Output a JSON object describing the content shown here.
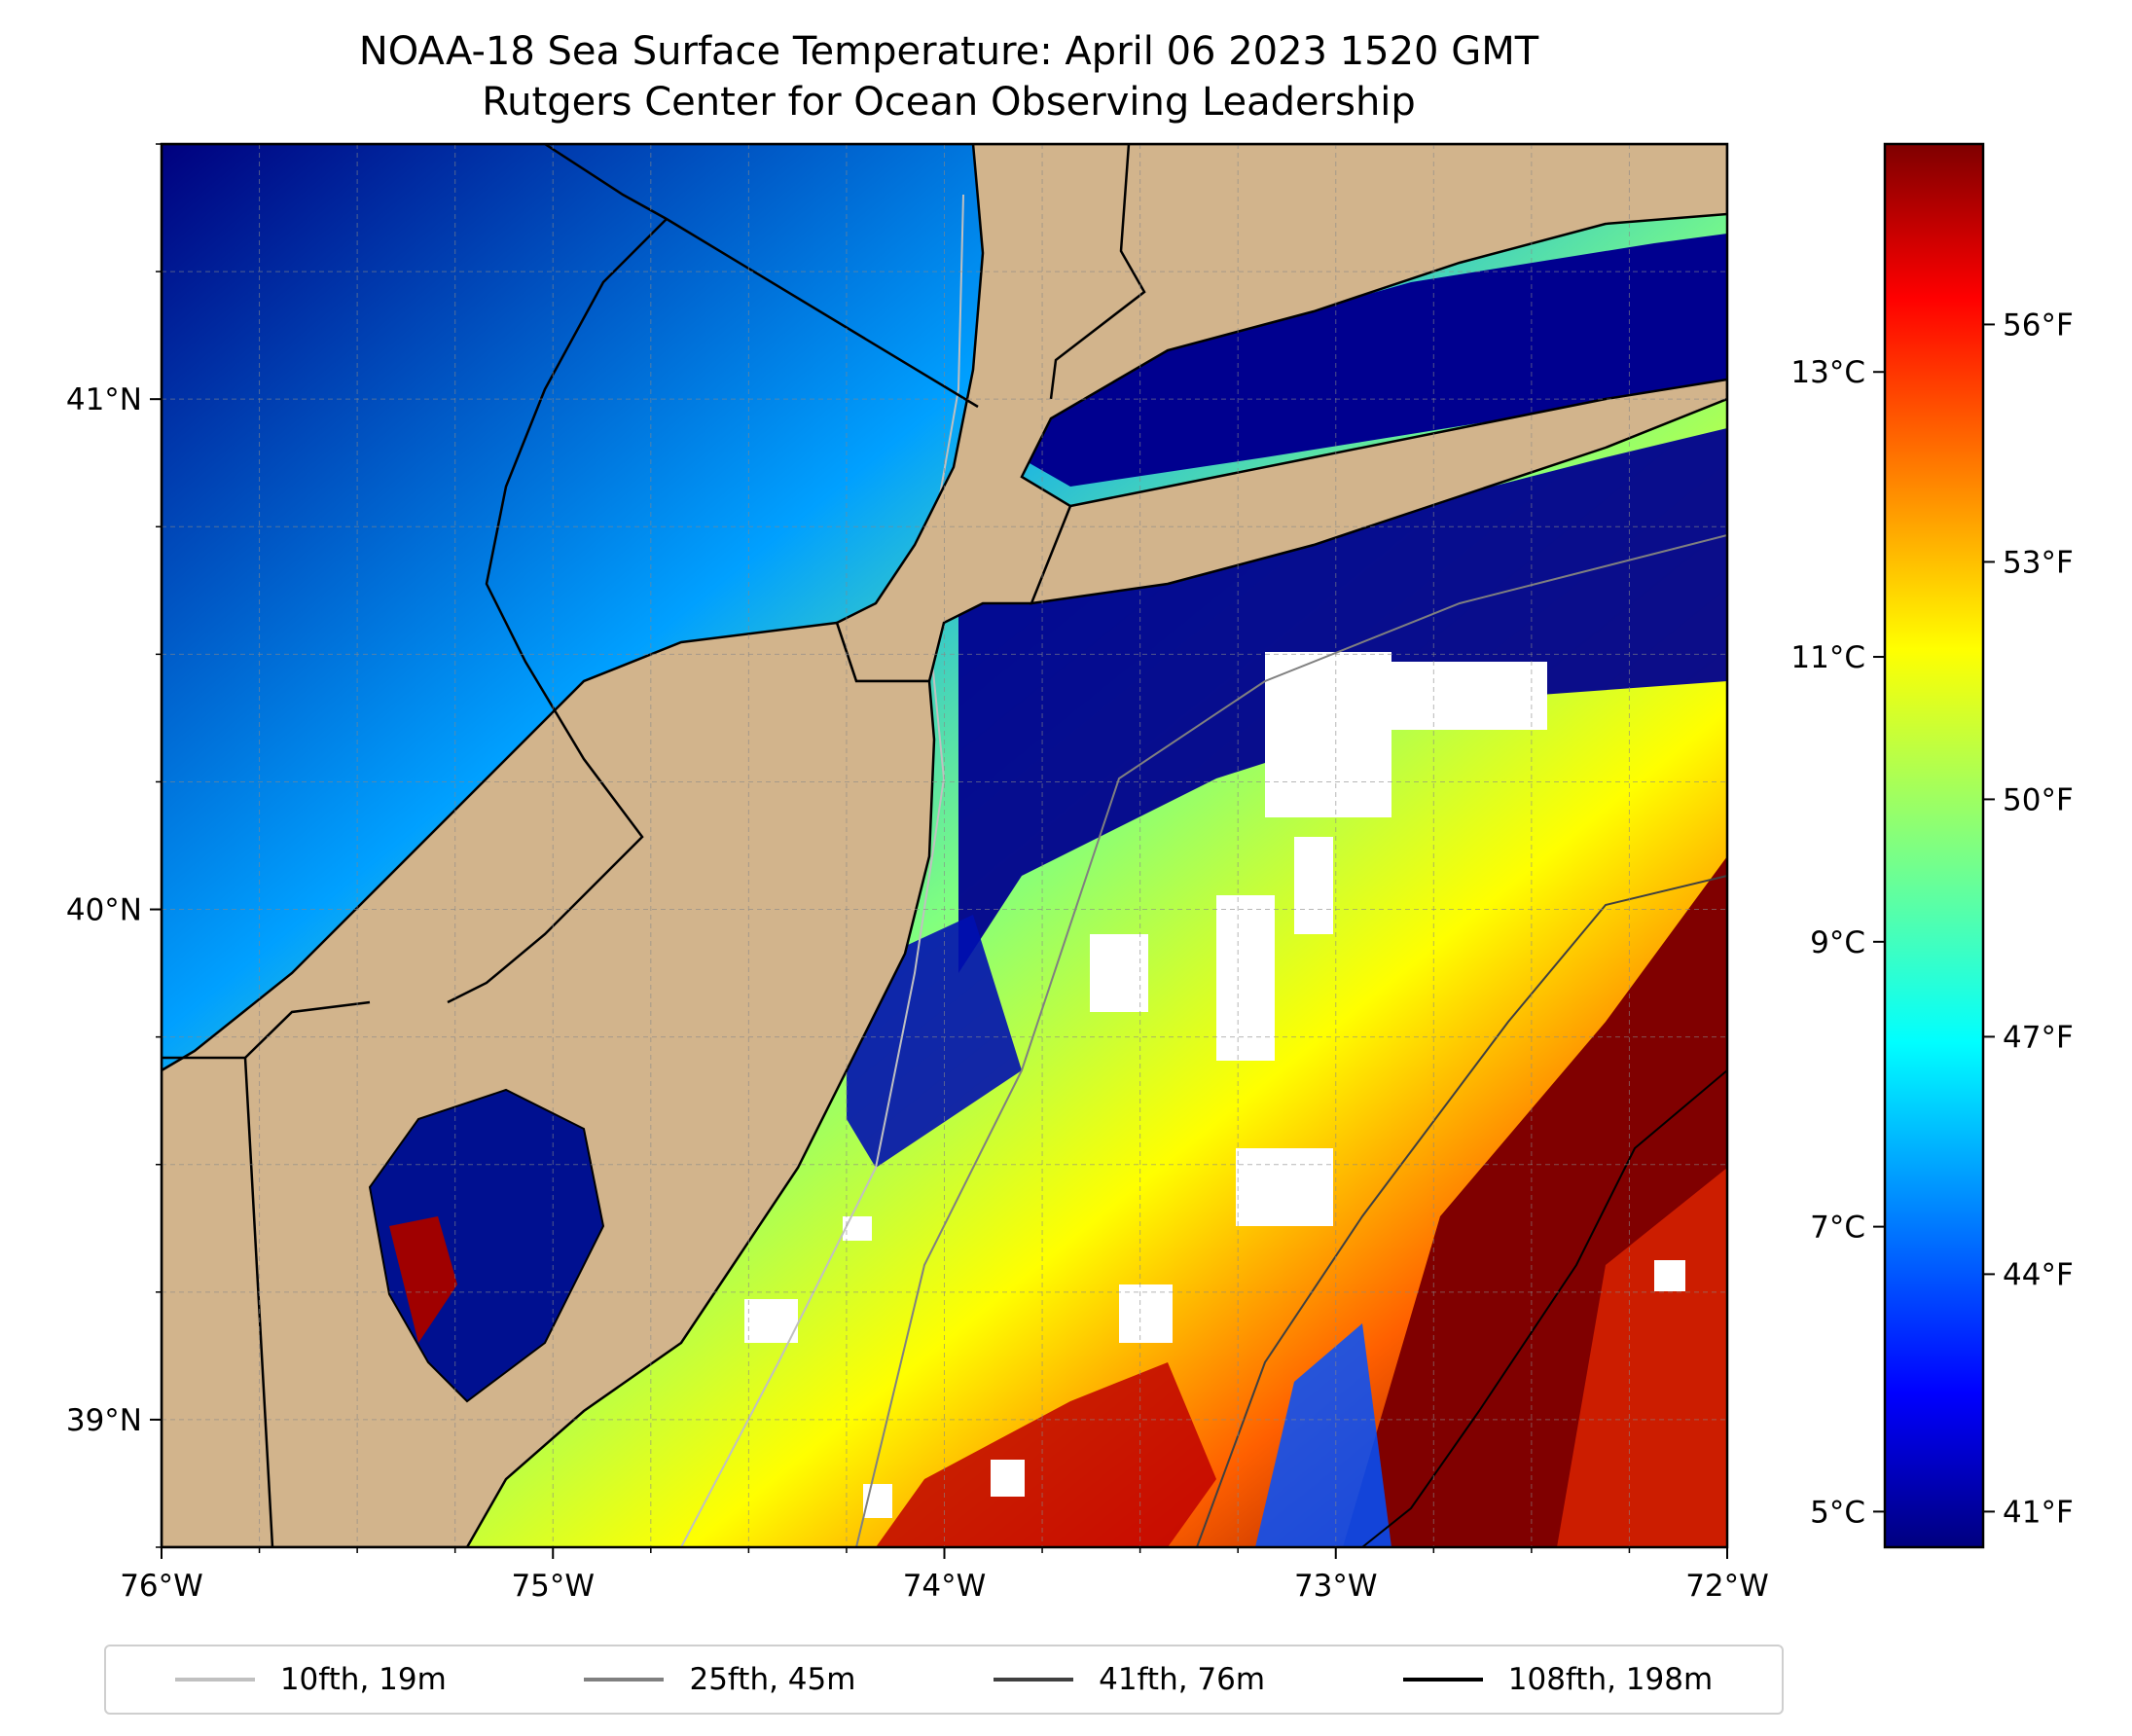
{
  "title": "NOAA-18 Sea Surface Temperature: April 06 2023 1520 GMT",
  "subtitle": "Rutgers Center for Ocean Observing Leadership",
  "map": {
    "lon_range": [
      -76,
      -72
    ],
    "lat_range": [
      38.75,
      41.5
    ],
    "lon_ticks": [
      -76,
      -75,
      -74,
      -73,
      -72
    ],
    "lon_tick_labels": [
      "76°W",
      "75°W",
      "74°W",
      "73°W",
      "72°W"
    ],
    "lat_ticks": [
      39,
      40,
      41
    ],
    "lat_tick_labels": [
      "39°N",
      "40°N",
      "41°N"
    ],
    "gridlines": true,
    "land_color": "#d2b48c",
    "colormap": "jet"
  },
  "colorbar": {
    "celsius_ticks": [
      5,
      7,
      9,
      11,
      13
    ],
    "celsius_labels": [
      "5°C",
      "7°C",
      "9°C",
      "11°C",
      "13°C"
    ],
    "fahrenheit_ticks": [
      41,
      44,
      47,
      50,
      53,
      56
    ],
    "fahrenheit_labels": [
      "41°F",
      "44°F",
      "47°F",
      "50°F",
      "53°F",
      "56°F"
    ],
    "range_celsius": [
      4.75,
      14.6
    ]
  },
  "legend": {
    "placement": "bottom",
    "items": [
      {
        "label": "10fth, 19m",
        "color": "#c0c0c0"
      },
      {
        "label": "25fth, 45m",
        "color": "#808080"
      },
      {
        "label": "41fth, 76m",
        "color": "#404040"
      },
      {
        "label": "108fth, 198m",
        "color": "#000000"
      }
    ]
  }
}
